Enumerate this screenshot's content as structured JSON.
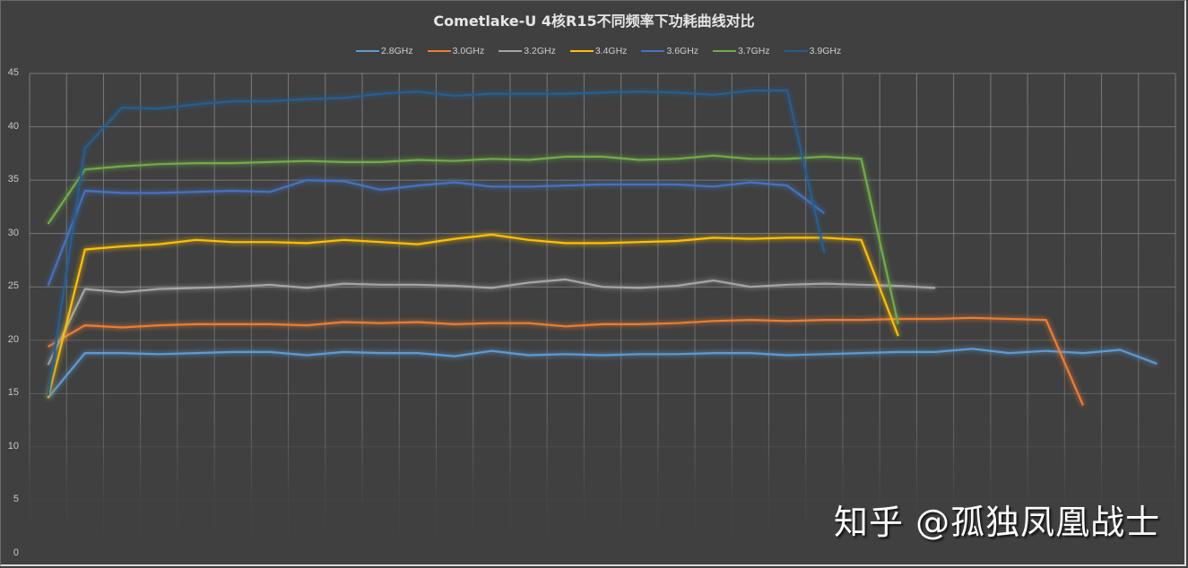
{
  "chart_data": {
    "type": "line",
    "title": "Cometlake-U 4核R15不同频率下功耗曲线对比",
    "xlabel": "",
    "ylabel": "",
    "ylim": [
      0,
      45
    ],
    "yticks": [
      0,
      5,
      10,
      15,
      20,
      25,
      30,
      35,
      40,
      45
    ],
    "grid": true,
    "legend_position": "top",
    "x_count": 31,
    "series": [
      {
        "name": "2.8GHz",
        "color": "#5b9bd5",
        "values": [
          14.6,
          18.8,
          18.8,
          18.7,
          18.8,
          18.9,
          18.9,
          18.6,
          18.9,
          18.8,
          18.8,
          18.5,
          19.0,
          18.6,
          18.7,
          18.6,
          18.7,
          18.7,
          18.8,
          18.8,
          18.6,
          18.7,
          18.8,
          18.9,
          18.9,
          19.2,
          18.8,
          19.0,
          18.8,
          19.1,
          17.8
        ]
      },
      {
        "name": "3.0GHz",
        "color": "#ed7d31",
        "values": [
          19.4,
          21.4,
          21.2,
          21.4,
          21.5,
          21.5,
          21.5,
          21.4,
          21.7,
          21.6,
          21.7,
          21.5,
          21.6,
          21.6,
          21.3,
          21.5,
          21.5,
          21.6,
          21.8,
          21.9,
          21.8,
          21.9,
          21.9,
          22.0,
          22.0,
          22.1,
          22.0,
          21.9,
          13.9
        ]
      },
      {
        "name": "3.2GHz",
        "color": "#a5a5a5",
        "values": [
          17.7,
          24.8,
          24.5,
          24.8,
          24.9,
          25.0,
          25.2,
          24.9,
          25.3,
          25.2,
          25.2,
          25.1,
          24.9,
          25.4,
          25.7,
          25.0,
          24.9,
          25.1,
          25.6,
          25.0,
          25.2,
          25.3,
          25.2,
          25.1,
          24.9
        ]
      },
      {
        "name": "3.4GHz",
        "color": "#ffc000",
        "values": [
          14.6,
          28.5,
          28.8,
          29.0,
          29.4,
          29.2,
          29.2,
          29.1,
          29.4,
          29.2,
          29.0,
          29.5,
          29.9,
          29.4,
          29.1,
          29.1,
          29.2,
          29.3,
          29.6,
          29.5,
          29.6,
          29.6,
          29.4,
          20.4
        ]
      },
      {
        "name": "3.6GHz",
        "color": "#4472c4",
        "values": [
          25.1,
          34.0,
          33.8,
          33.8,
          33.9,
          34.0,
          33.9,
          35.0,
          34.9,
          34.1,
          34.5,
          34.8,
          34.4,
          34.4,
          34.5,
          34.6,
          34.6,
          34.6,
          34.4,
          34.8,
          34.5,
          31.9
        ]
      },
      {
        "name": "3.7GHz",
        "color": "#70ad47",
        "values": [
          30.9,
          36.0,
          36.3,
          36.5,
          36.6,
          36.6,
          36.7,
          36.8,
          36.7,
          36.7,
          36.9,
          36.8,
          37.0,
          36.9,
          37.2,
          37.2,
          36.9,
          37.0,
          37.3,
          37.0,
          37.0,
          37.2,
          37.0,
          21.5
        ]
      },
      {
        "name": "3.9GHz",
        "color": "#255e91",
        "values": [
          14.8,
          38.0,
          41.8,
          41.7,
          42.1,
          42.4,
          42.4,
          42.6,
          42.7,
          43.1,
          43.3,
          42.9,
          43.1,
          43.1,
          43.1,
          43.2,
          43.3,
          43.2,
          43.0,
          43.4,
          43.4,
          28.2
        ]
      }
    ]
  },
  "watermark": "知乎 @孤独凤凰战士"
}
